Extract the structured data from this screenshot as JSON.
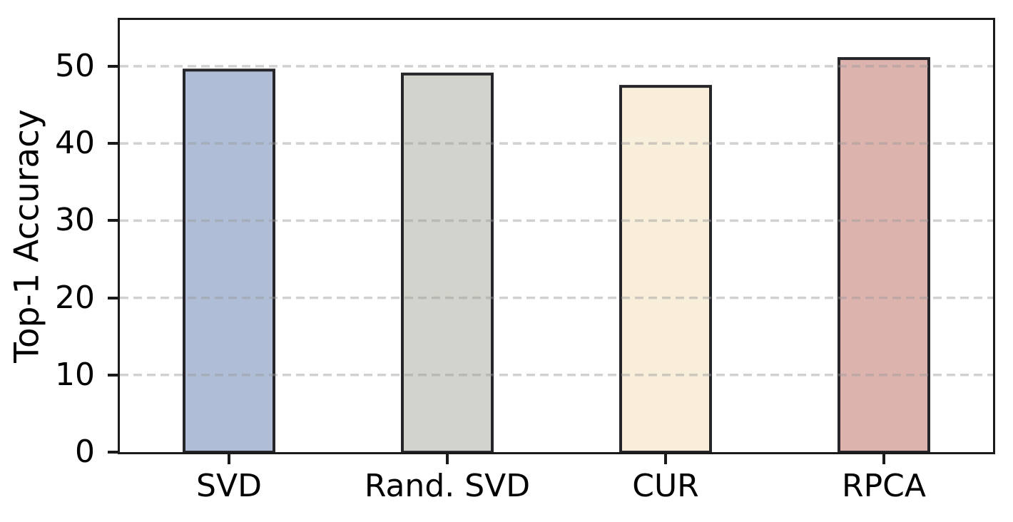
{
  "figure": {
    "background": "#ffffff",
    "spine_color": "#1a1a1a"
  },
  "chart_data": {
    "type": "bar",
    "title": "",
    "xlabel": "",
    "ylabel": "Top-1 Accuracy",
    "categories": [
      "SVD",
      "Rand. SVD",
      "CUR",
      "RPCA"
    ],
    "values": [
      49.5,
      49.0,
      47.4,
      51.0
    ],
    "bar_colors": [
      "#afbdd6",
      "#d1d3cc",
      "#f8eeda",
      "#dcb3ad"
    ],
    "bar_edge_color": "#25252a",
    "ylim": [
      0,
      56
    ],
    "yticks": [
      0,
      10,
      20,
      30,
      40,
      50
    ],
    "ytick_labels": [
      "0",
      "10",
      "20",
      "30",
      "40",
      "50"
    ],
    "grid": "horizontal dashed",
    "grid_color": "#d2d2d2",
    "legend_position": "none"
  }
}
